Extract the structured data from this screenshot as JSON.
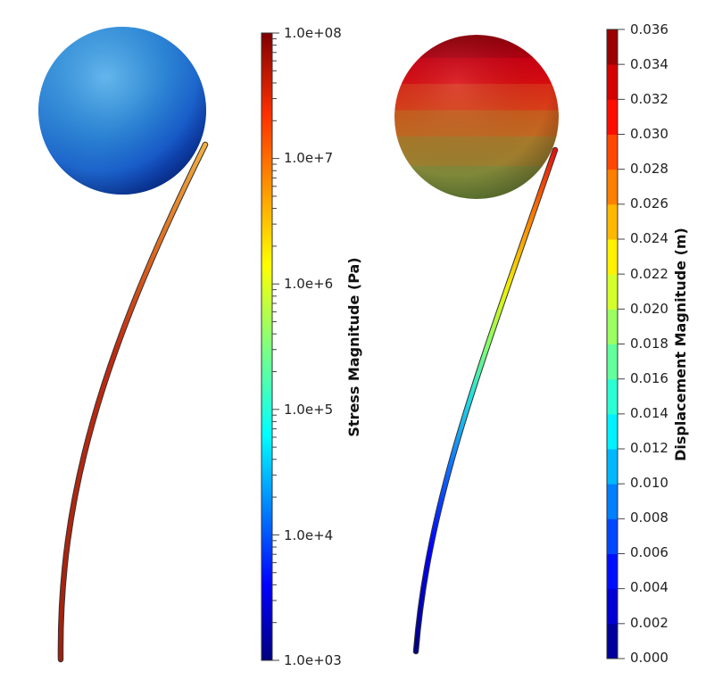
{
  "stress_view": {
    "colorbar": {
      "title": "Stress Magnitude (Pa)",
      "scale": "log",
      "range": [
        1000,
        100000000
      ],
      "labels": [
        "1.0e+08",
        "1.0e+7",
        "1.0e+6",
        "1.0e+5",
        "1.0e+4",
        "1.0e+03"
      ]
    },
    "sphere_color_note": "blue",
    "rod_color_note": "dark red to orange"
  },
  "displacement_view": {
    "colorbar": {
      "title": "Displacement Magnitude (m)",
      "scale": "linear",
      "range": [
        0,
        0.036
      ],
      "bands": 18,
      "labels": [
        "0.036",
        "0.034",
        "0.032",
        "0.030",
        "0.028",
        "0.026",
        "0.024",
        "0.022",
        "0.020",
        "0.018",
        "0.016",
        "0.014",
        "0.012",
        "0.010",
        "0.008",
        "0.006",
        "0.004",
        "0.002",
        "0.000"
      ]
    },
    "sphere_color_note": "red to olive bands",
    "rod_color_note": "blue to red gradient"
  },
  "colors": {
    "jet": [
      "#00007f",
      "#0000ff",
      "#007fff",
      "#00ffff",
      "#7fff7f",
      "#ffff00",
      "#ff7f00",
      "#ff0000",
      "#7f0000"
    ]
  }
}
